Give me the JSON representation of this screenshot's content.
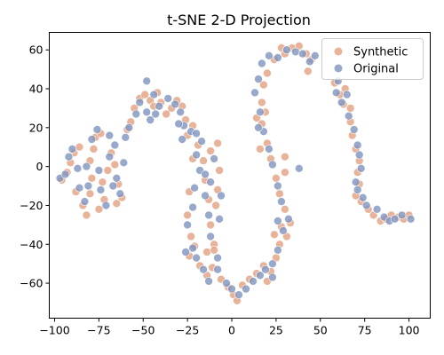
{
  "chart_data": {
    "type": "scatter",
    "title": "t-SNE 2-D Projection",
    "xlabel": "",
    "ylabel": "",
    "xlim": [
      -103,
      112
    ],
    "ylim": [
      -78,
      69
    ],
    "xticks": [
      -100,
      -75,
      -50,
      -25,
      0,
      25,
      50,
      75,
      100
    ],
    "yticks": [
      -60,
      -40,
      -20,
      0,
      20,
      40,
      60
    ],
    "grid": false,
    "legend_position": "top-right",
    "series": [
      {
        "name": "Synthetic",
        "color": "#e3a07f",
        "points": [
          [
            -96,
            -7
          ],
          [
            -93,
            -3
          ],
          [
            -91,
            2
          ],
          [
            -89,
            7
          ],
          [
            -86,
            10
          ],
          [
            -88,
            -13
          ],
          [
            -84,
            -20
          ],
          [
            -82,
            -25
          ],
          [
            -80,
            -14
          ],
          [
            -79,
            -6
          ],
          [
            -80,
            3
          ],
          [
            -78,
            9
          ],
          [
            -77,
            15
          ],
          [
            -74,
            17
          ],
          [
            -73,
            -8
          ],
          [
            -75,
            -22
          ],
          [
            -72,
            -17
          ],
          [
            -70,
            -2
          ],
          [
            -68,
            7
          ],
          [
            -66,
            1
          ],
          [
            -64,
            -9
          ],
          [
            -62,
            -16
          ],
          [
            -65,
            -19
          ],
          [
            -59,
            19
          ],
          [
            -57,
            23
          ],
          [
            -55,
            30
          ],
          [
            -52,
            35
          ],
          [
            -49,
            37
          ],
          [
            -46,
            34
          ],
          [
            -44,
            31
          ],
          [
            -42,
            38
          ],
          [
            -40,
            33
          ],
          [
            -37,
            27
          ],
          [
            -34,
            30
          ],
          [
            -31,
            34
          ],
          [
            -28,
            31
          ],
          [
            -26,
            24
          ],
          [
            -25,
            16
          ],
          [
            -22,
            21
          ],
          [
            -19,
            11
          ],
          [
            -22,
            4
          ],
          [
            -24,
            -13
          ],
          [
            -25,
            -25
          ],
          [
            -23,
            -36
          ],
          [
            -24,
            -46
          ],
          [
            -21,
            -41
          ],
          [
            -18,
            -51
          ],
          [
            -14,
            -56
          ],
          [
            -11,
            -52
          ],
          [
            -14,
            -44
          ],
          [
            -10,
            -40
          ],
          [
            -12,
            -30
          ],
          [
            -13,
            -17
          ],
          [
            -15,
            -7
          ],
          [
            -16,
            3
          ],
          [
            -12,
            8
          ],
          [
            -8,
            12
          ],
          [
            -7,
            -2
          ],
          [
            -8,
            -12
          ],
          [
            -9,
            -20
          ],
          [
            -10,
            -43
          ],
          [
            -6,
            -58
          ],
          [
            -2,
            -62
          ],
          [
            1,
            -66
          ],
          [
            3,
            -69
          ],
          [
            6,
            -61
          ],
          [
            10,
            -58
          ],
          [
            14,
            -55
          ],
          [
            18,
            -51
          ],
          [
            20,
            -59
          ],
          [
            22,
            -54
          ],
          [
            25,
            -47
          ],
          [
            27,
            -40
          ],
          [
            24,
            -35
          ],
          [
            28,
            -31
          ],
          [
            31,
            -36
          ],
          [
            33,
            -29
          ],
          [
            30,
            -22
          ],
          [
            27,
            -14
          ],
          [
            25,
            -6
          ],
          [
            22,
            4
          ],
          [
            20,
            12
          ],
          [
            17,
            22
          ],
          [
            19,
            28
          ],
          [
            17,
            33
          ],
          [
            18,
            42
          ],
          [
            20,
            48
          ],
          [
            24,
            55
          ],
          [
            28,
            61
          ],
          [
            30,
            58
          ],
          [
            34,
            61
          ],
          [
            38,
            62
          ],
          [
            42,
            58
          ],
          [
            45,
            55
          ],
          [
            43,
            49
          ],
          [
            58,
            43
          ],
          [
            61,
            37
          ],
          [
            63,
            32
          ],
          [
            64,
            40
          ],
          [
            67,
            30
          ],
          [
            67,
            23
          ],
          [
            68,
            16
          ],
          [
            70,
            9
          ],
          [
            72,
            3
          ],
          [
            71,
            -3
          ],
          [
            72,
            -9
          ],
          [
            70,
            -15
          ],
          [
            73,
            -18
          ],
          [
            77,
            -22
          ],
          [
            80,
            -25
          ],
          [
            84,
            -28
          ],
          [
            87,
            -27
          ],
          [
            90,
            -25
          ],
          [
            94,
            -26
          ],
          [
            97,
            -27
          ],
          [
            100,
            -25
          ],
          [
            14,
            25
          ],
          [
            16,
            9
          ],
          [
            30,
            -3
          ],
          [
            30,
            5
          ]
        ]
      },
      {
        "name": "Original",
        "color": "#7e93bf",
        "points": [
          [
            -97,
            -6
          ],
          [
            -94,
            -4
          ],
          [
            -92,
            5
          ],
          [
            -90,
            9
          ],
          [
            -87,
            -1
          ],
          [
            -86,
            -11
          ],
          [
            -83,
            -18
          ],
          [
            -81,
            -10
          ],
          [
            -82,
            0
          ],
          [
            -79,
            14
          ],
          [
            -76,
            19
          ],
          [
            -75,
            -2
          ],
          [
            -74,
            -12
          ],
          [
            -71,
            -20
          ],
          [
            -69,
            5
          ],
          [
            -69,
            16
          ],
          [
            -66,
            11
          ],
          [
            -67,
            -10
          ],
          [
            -63,
            -14
          ],
          [
            -65,
            -6
          ],
          [
            -61,
            2
          ],
          [
            -60,
            15
          ],
          [
            -58,
            20
          ],
          [
            -54,
            27
          ],
          [
            -52,
            33
          ],
          [
            -48,
            28
          ],
          [
            -46,
            24
          ],
          [
            -43,
            27
          ],
          [
            -48,
            44
          ],
          [
            -44,
            37
          ],
          [
            -41,
            31
          ],
          [
            -36,
            35
          ],
          [
            -32,
            32
          ],
          [
            -29,
            28
          ],
          [
            -27,
            21
          ],
          [
            -23,
            18
          ],
          [
            -20,
            17
          ],
          [
            -17,
            13
          ],
          [
            -20,
            6
          ],
          [
            -18,
            -2
          ],
          [
            -21,
            -11
          ],
          [
            -22,
            -21
          ],
          [
            -25,
            -30
          ],
          [
            -22,
            -42
          ],
          [
            -26,
            -44
          ],
          [
            -20,
            -47
          ],
          [
            -16,
            -53
          ],
          [
            -13,
            -59
          ],
          [
            -8,
            -53
          ],
          [
            -12,
            -36
          ],
          [
            -13,
            -25
          ],
          [
            -15,
            -15
          ],
          [
            -15,
            -4
          ],
          [
            -12,
            -8
          ],
          [
            -10,
            4
          ],
          [
            -6,
            -15
          ],
          [
            -7,
            -27
          ],
          [
            -8,
            -47
          ],
          [
            -3,
            -60
          ],
          [
            0,
            -63
          ],
          [
            4,
            -66
          ],
          [
            8,
            -63
          ],
          [
            12,
            -59
          ],
          [
            16,
            -56
          ],
          [
            19,
            -53
          ],
          [
            23,
            -50
          ],
          [
            23,
            -57
          ],
          [
            26,
            -43
          ],
          [
            26,
            -28
          ],
          [
            29,
            -33
          ],
          [
            32,
            -27
          ],
          [
            28,
            -18
          ],
          [
            26,
            -10
          ],
          [
            23,
            1
          ],
          [
            21,
            9
          ],
          [
            18,
            18
          ],
          [
            16,
            28
          ],
          [
            13,
            38
          ],
          [
            15,
            45
          ],
          [
            17,
            53
          ],
          [
            21,
            57
          ],
          [
            26,
            56
          ],
          [
            31,
            60
          ],
          [
            36,
            59
          ],
          [
            40,
            58
          ],
          [
            44,
            54
          ],
          [
            47,
            57
          ],
          [
            60,
            44
          ],
          [
            59,
            38
          ],
          [
            62,
            33
          ],
          [
            65,
            37
          ],
          [
            66,
            26
          ],
          [
            69,
            19
          ],
          [
            71,
            11
          ],
          [
            72,
            6
          ],
          [
            73,
            -1
          ],
          [
            70,
            -8
          ],
          [
            71,
            -12
          ],
          [
            74,
            -16
          ],
          [
            76,
            -20
          ],
          [
            82,
            -22
          ],
          [
            86,
            -26
          ],
          [
            89,
            -28
          ],
          [
            92,
            -27
          ],
          [
            96,
            -25
          ],
          [
            101,
            -27
          ],
          [
            -30,
            22
          ],
          [
            -28,
            14
          ],
          [
            15,
            20
          ],
          [
            38,
            -1
          ]
        ]
      }
    ]
  }
}
